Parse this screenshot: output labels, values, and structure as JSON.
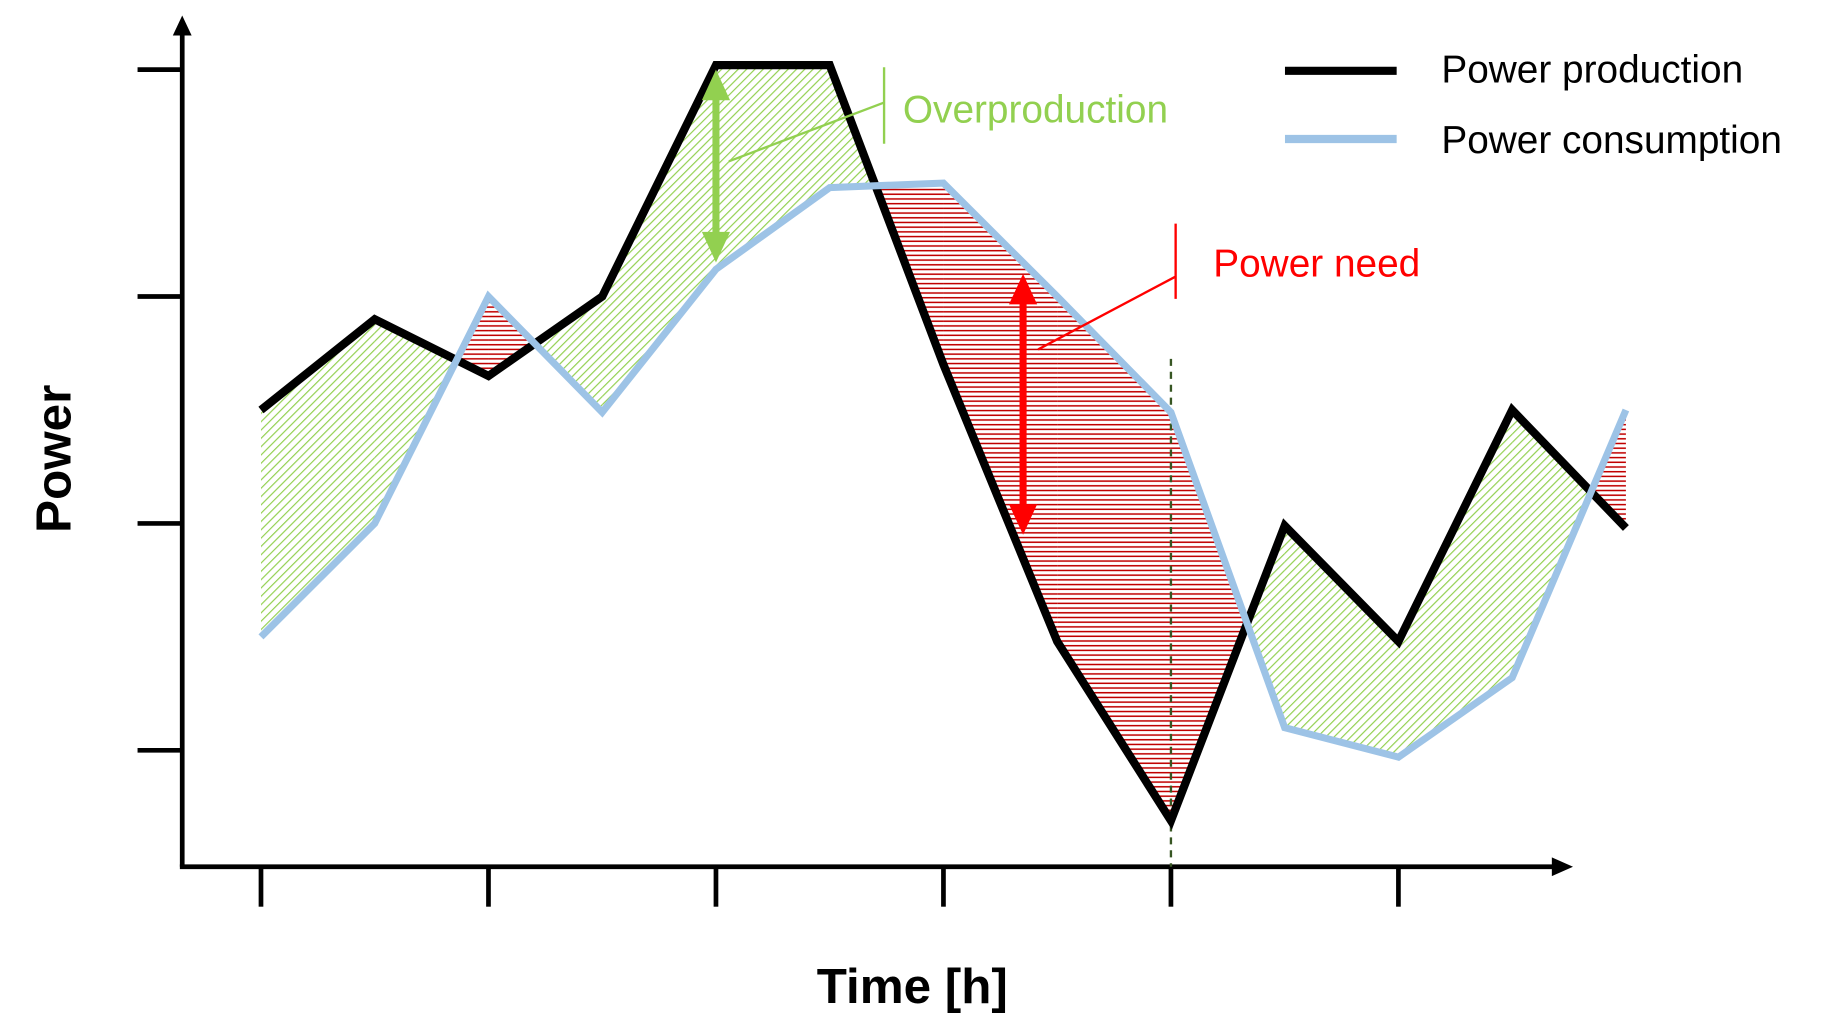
{
  "chart_data": {
    "type": "line",
    "title": "",
    "xlabel": "Time [h]",
    "ylabel": "Power",
    "grid": false,
    "legend": "top-right",
    "x": [
      0,
      0.5,
      1,
      1.5,
      2,
      2.5,
      3,
      3.5,
      4,
      4.5,
      5,
      5.5,
      6
    ],
    "x_ticks": [
      0,
      1,
      2,
      3,
      4,
      5
    ],
    "y_ticks": [
      1,
      2,
      3,
      4
    ],
    "ylim": [
      0.5,
      4.35
    ],
    "xlim": [
      -0.35,
      5.9
    ],
    "series": [
      {
        "name": "Power production",
        "color": "#000000",
        "values": [
          2.5,
          2.9,
          2.65,
          3.0,
          4.02,
          4.02,
          2.7,
          1.48,
          0.69,
          1.99,
          1.48,
          2.5,
          1.98
        ]
      },
      {
        "name": "Power consumption",
        "color": "#9dc3e6",
        "values": [
          1.5,
          2.0,
          3.0,
          2.49,
          3.12,
          3.48,
          3.5,
          3.0,
          2.49,
          1.1,
          0.97,
          1.32,
          2.5
        ]
      }
    ],
    "annotations": {
      "overproduction": {
        "label": "Overproduction",
        "color": "#92d050",
        "x": 2,
        "from": 3.15,
        "to": 4.0
      },
      "power_need": {
        "label": "Power need",
        "color": "#ff0000",
        "x": 3.35,
        "from": 1.95,
        "to": 3.1
      },
      "marker_x": 4
    },
    "fill_colors": {
      "surplus": "#92d050",
      "deficit": "#c00000"
    }
  }
}
